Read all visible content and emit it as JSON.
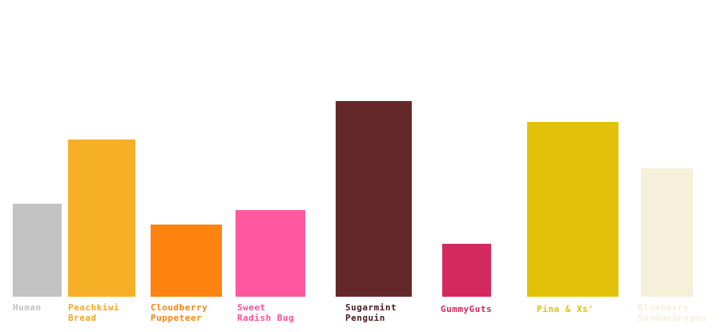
{
  "chart_data": {
    "type": "bar",
    "title": "",
    "xlabel": "",
    "ylabel": "",
    "grid": false,
    "legend": "none",
    "categories": [
      "Human",
      "Peachkiwi\nBread",
      "Cloudberry\nPuppeteer",
      "Sweet\nRadish Bug",
      "Sugarmint\nPenguin",
      "GummyGuts",
      "Pina & Xs'",
      "Blueberry\nSundaeDragon"
    ],
    "values": [
      116,
      196,
      90,
      108,
      244,
      66,
      218,
      160
    ],
    "colors": [
      "#c2c2c2",
      "#f5b027",
      "#fe8311",
      "#ff57a0",
      "#652829",
      "#d4295e",
      "#e2c108",
      "#f6efd9"
    ],
    "label_colors": [
      "#c2c2c2",
      "#f5a623",
      "#fe8311",
      "#ff4f9a",
      "#4a1a1c",
      "#d4295e",
      "#e2c108",
      "#f6efd9"
    ],
    "ylim": [
      0,
      260
    ]
  }
}
